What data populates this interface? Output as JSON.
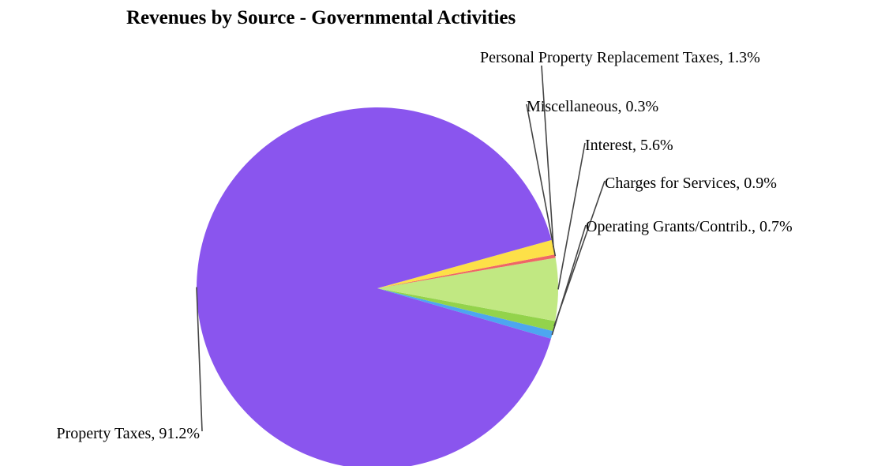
{
  "chart_data": {
    "type": "pie",
    "title": "Revenues by Source - Governmental Activities",
    "slices": [
      {
        "label": "Operating Grants/Contrib., 0.7%",
        "name": "Operating Grants/Contrib.",
        "value": 0.7,
        "color": "#4da6f0"
      },
      {
        "label": "Charges for Services, 0.9%",
        "name": "Charges for Services",
        "value": 0.9,
        "color": "#93d34b"
      },
      {
        "label": "Interest, 5.6%",
        "name": "Interest",
        "value": 5.6,
        "color": "#c1e882"
      },
      {
        "label": "Miscellaneous, 0.3%",
        "name": "Miscellaneous",
        "value": 0.3,
        "color": "#ef6666"
      },
      {
        "label": "Personal Property Replacement Taxes, 1.3%",
        "name": "Personal Property Replacement Taxes",
        "value": 1.3,
        "color": "#fde048"
      },
      {
        "label": "Property Taxes, 91.2%",
        "name": "Property Taxes",
        "value": 91.2,
        "color": "#8a55ee"
      }
    ],
    "legend": "none",
    "labels": "outside with leader lines"
  }
}
